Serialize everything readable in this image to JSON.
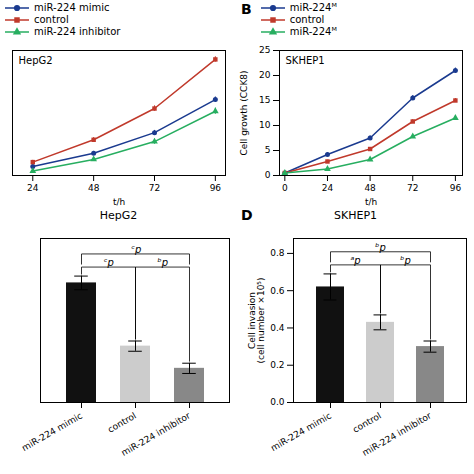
{
  "chart_data": [
    {
      "type": "line",
      "xlabel": "t/h",
      "annotations": [
        "HepG2"
      ],
      "x": [
        24,
        48,
        72,
        96
      ],
      "xlim": [
        16,
        100
      ],
      "xticks": [
        24,
        48,
        72,
        96
      ],
      "ylim": [
        0,
        14
      ],
      "tick_labels": "x",
      "legend": "top",
      "series": [
        {
          "name": "miR-224 mimic",
          "color": "#1a3a8f",
          "marker": "circle",
          "values": [
            1.0,
            2.5,
            4.8,
            8.5
          ],
          "errors": [
            0.15,
            0.2,
            0.25,
            0.3
          ]
        },
        {
          "name": "control",
          "color": "#c0392b",
          "marker": "square",
          "values": [
            1.5,
            4.0,
            7.5,
            13.0
          ],
          "errors": [
            0.2,
            0.25,
            0.3,
            0.3
          ]
        },
        {
          "name": "miR-224 inhibitor",
          "color": "#27ae60",
          "marker": "triangle",
          "values": [
            0.5,
            1.8,
            3.8,
            7.2
          ],
          "errors": [
            0.15,
            0.2,
            0.3,
            0.35
          ]
        }
      ]
    },
    {
      "type": "line",
      "xlabel": "t/h",
      "ylabel": "Cell growth (CCK8)",
      "annotations": [
        "B",
        "SKHEP1"
      ],
      "x": [
        0,
        24,
        48,
        72,
        96
      ],
      "xlim": [
        -3,
        100
      ],
      "xticks": [
        0,
        24,
        48,
        72,
        96
      ],
      "ylim": [
        0,
        25
      ],
      "yticks": [
        0,
        5,
        10,
        15,
        20,
        25
      ],
      "legend": "top",
      "series": [
        {
          "name": "miR-224ᴹ",
          "color": "#1a3a8f",
          "marker": "circle",
          "values": [
            0.5,
            4.2,
            7.5,
            15.5,
            21.0
          ],
          "errors": [
            0.1,
            0.3,
            0.4,
            0.5,
            0.5
          ]
        },
        {
          "name": "control",
          "color": "#c0392b",
          "marker": "square",
          "values": [
            0.5,
            2.8,
            5.3,
            10.8,
            15.0
          ],
          "errors": [
            0.1,
            0.25,
            0.3,
            0.4,
            0.4
          ]
        },
        {
          "name": "miR-224ᴹ",
          "color": "#27ae60",
          "marker": "triangle",
          "values": [
            0.5,
            1.3,
            3.2,
            7.8,
            11.5
          ],
          "errors": [
            0.1,
            0.2,
            0.25,
            0.35,
            0.35
          ]
        }
      ]
    },
    {
      "type": "bar",
      "title": "HepG2",
      "categories": [
        "miR-224 mimic",
        "control",
        "miR-224 inhibitor"
      ],
      "values": [
        0.7,
        0.33,
        0.2
      ],
      "errors": [
        0.04,
        0.03,
        0.03
      ],
      "colors": [
        "#111111",
        "#cccccc",
        "#888888"
      ],
      "ylim": [
        0,
        0.96
      ],
      "tick_labels": "x",
      "annotations": [
        {
          "text": "ᶜp",
          "between": [
            "miR-224 mimic",
            "control"
          ]
        },
        {
          "text": "ᵇp",
          "between": [
            "control",
            "miR-224 inhibitor"
          ]
        },
        {
          "text": "ᶜp",
          "between": [
            "miR-224 mimic",
            "miR-224 inhibitor"
          ]
        }
      ]
    },
    {
      "type": "bar",
      "title": "SKHEP1",
      "ylabel": "Cell invasion\n(cell number ×10⁵)",
      "categories": [
        "miR-224 mimic",
        "control",
        "miR-224 inhibitor"
      ],
      "values": [
        0.62,
        0.43,
        0.3
      ],
      "errors": [
        0.07,
        0.04,
        0.03
      ],
      "colors": [
        "#111111",
        "#cccccc",
        "#888888"
      ],
      "ylim": [
        0,
        0.88
      ],
      "yticks": [
        {
          "value": 0,
          "label": "0.0"
        },
        0.2,
        0.4,
        0.6,
        0.8
      ],
      "annotations": [
        "D",
        {
          "text": "ᵃp",
          "between": [
            "miR-224 mimic",
            "control"
          ]
        },
        {
          "text": "ᵇp",
          "between": [
            "control",
            "miR-224 inhibitor"
          ]
        },
        {
          "text": "ᵇp",
          "between": [
            "miR-224 mimic",
            "miR-224 inhibitor"
          ]
        }
      ]
    }
  ]
}
